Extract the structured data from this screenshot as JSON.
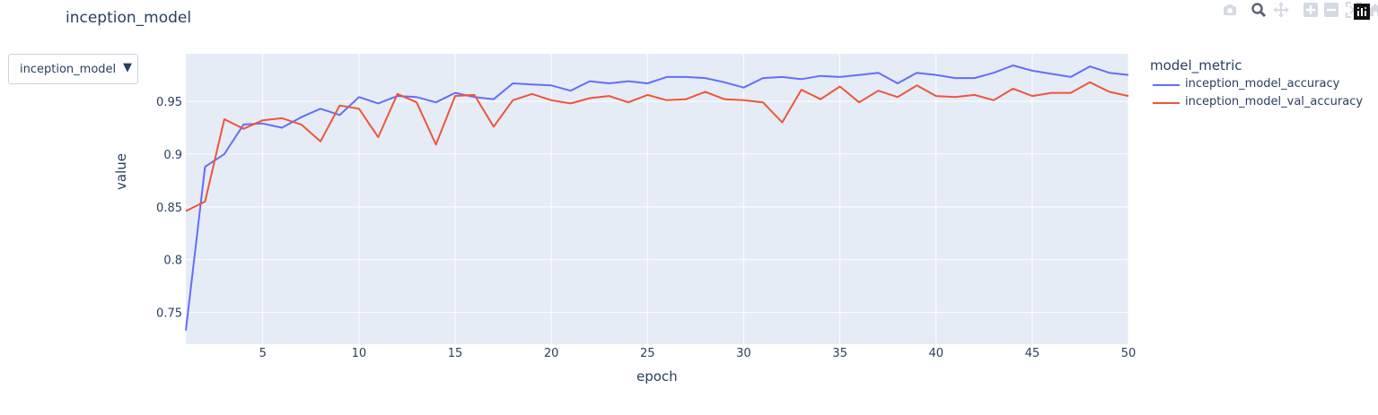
{
  "title": "inception_model",
  "dropdown": {
    "selected": "inception_model",
    "arrow": "▼"
  },
  "modebar": {
    "icons": [
      "camera-icon",
      "zoom-icon",
      "pan-icon",
      "zoom-in-icon",
      "zoom-out-icon",
      "autoscale-icon",
      "reset-axes-icon",
      "plotly-logo-icon"
    ]
  },
  "colors": {
    "plot_bg": "#e5ecf6",
    "grid": "#ffffff",
    "accuracy": "#636efa",
    "val_accuracy": "#ef553b",
    "text": "#2a3f5f"
  },
  "chart_data": {
    "type": "line",
    "title": "inception_model",
    "xlabel": "epoch",
    "ylabel": "value",
    "xlim": [
      1,
      50
    ],
    "ylim": [
      0.72,
      0.995
    ],
    "x_ticks": [
      5,
      10,
      15,
      20,
      25,
      30,
      35,
      40,
      45,
      50
    ],
    "y_ticks": [
      0.75,
      0.8,
      0.85,
      0.9,
      0.95
    ],
    "y_tick_labels": [
      "0.75",
      "0.8",
      "0.85",
      "0.9",
      "0.95"
    ],
    "grid": true,
    "legend_title": "model_metric",
    "legend_position": "right",
    "x": [
      1,
      2,
      3,
      4,
      5,
      6,
      7,
      8,
      9,
      10,
      11,
      12,
      13,
      14,
      15,
      16,
      17,
      18,
      19,
      20,
      21,
      22,
      23,
      24,
      25,
      26,
      27,
      28,
      29,
      30,
      31,
      32,
      33,
      34,
      35,
      36,
      37,
      38,
      39,
      40,
      41,
      42,
      43,
      44,
      45,
      46,
      47,
      48,
      49,
      50
    ],
    "series": [
      {
        "name": "inception_model_accuracy",
        "color": "#636efa",
        "values": [
          0.733,
          0.888,
          0.9,
          0.928,
          0.929,
          0.925,
          0.935,
          0.943,
          0.937,
          0.954,
          0.948,
          0.955,
          0.954,
          0.949,
          0.958,
          0.954,
          0.952,
          0.967,
          0.966,
          0.965,
          0.96,
          0.969,
          0.967,
          0.969,
          0.967,
          0.973,
          0.973,
          0.972,
          0.968,
          0.963,
          0.972,
          0.973,
          0.971,
          0.974,
          0.973,
          0.975,
          0.977,
          0.967,
          0.977,
          0.975,
          0.972,
          0.972,
          0.977,
          0.984,
          0.979,
          0.976,
          0.973,
          0.983,
          0.977,
          0.975
        ]
      },
      {
        "name": "inception_model_val_accuracy",
        "color": "#ef553b",
        "values": [
          0.846,
          0.855,
          0.933,
          0.924,
          0.932,
          0.934,
          0.928,
          0.912,
          0.946,
          0.943,
          0.916,
          0.957,
          0.949,
          0.909,
          0.955,
          0.956,
          0.926,
          0.951,
          0.957,
          0.951,
          0.948,
          0.953,
          0.955,
          0.949,
          0.956,
          0.951,
          0.952,
          0.959,
          0.952,
          0.951,
          0.949,
          0.93,
          0.961,
          0.952,
          0.964,
          0.949,
          0.96,
          0.954,
          0.965,
          0.955,
          0.954,
          0.956,
          0.951,
          0.962,
          0.955,
          0.958,
          0.958,
          0.968,
          0.959,
          0.955
        ]
      }
    ]
  }
}
